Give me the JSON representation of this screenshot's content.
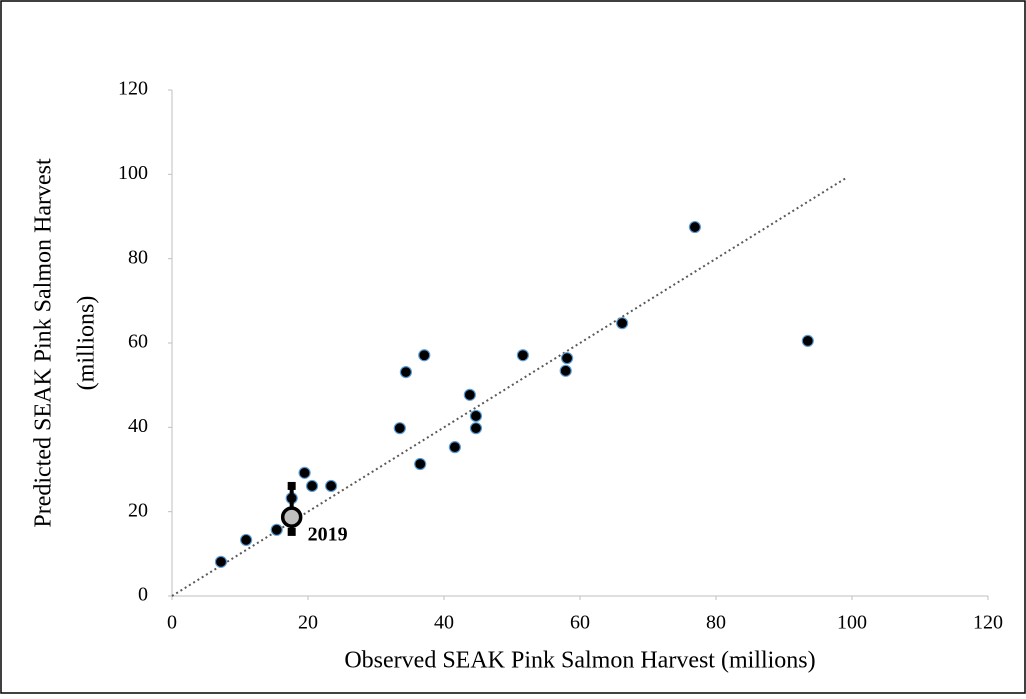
{
  "chart_data": {
    "type": "scatter",
    "xlabel": "Observed SEAK Pink Salmon Harvest (millions)",
    "ylabel": [
      "Predicted SEAK Pink Salmon Harvest",
      "(millions)"
    ],
    "x": [
      7.2,
      10.9,
      15.4,
      17.6,
      19.5,
      20.6,
      23.4,
      33.5,
      34.4,
      36.5,
      37.1,
      41.6,
      43.8,
      44.7,
      44.7,
      51.6,
      57.9,
      58.1,
      66.2,
      76.9,
      93.5
    ],
    "values": [
      8.1,
      13.3,
      15.7,
      23.2,
      29.2,
      26.1,
      26.1,
      39.8,
      53.1,
      31.3,
      57.1,
      35.3,
      47.7,
      42.7,
      39.8,
      57.1,
      53.4,
      56.4,
      64.7,
      87.5,
      60.5
    ],
    "color": "#000000",
    "edge_color": "#5b9bd5",
    "highlight": {
      "label": "2019",
      "x": 17.6,
      "y": 18.7,
      "low": 15.2,
      "high": 26.1
    },
    "reference_line": {
      "x": [
        0,
        99
      ],
      "y": [
        0,
        99
      ]
    },
    "xlim": [
      0,
      120
    ],
    "ylim": [
      0,
      120
    ],
    "xticks": [
      0,
      20,
      40,
      60,
      80,
      100,
      120
    ],
    "yticks": [
      0,
      20,
      40,
      60,
      80,
      100,
      120
    ]
  }
}
